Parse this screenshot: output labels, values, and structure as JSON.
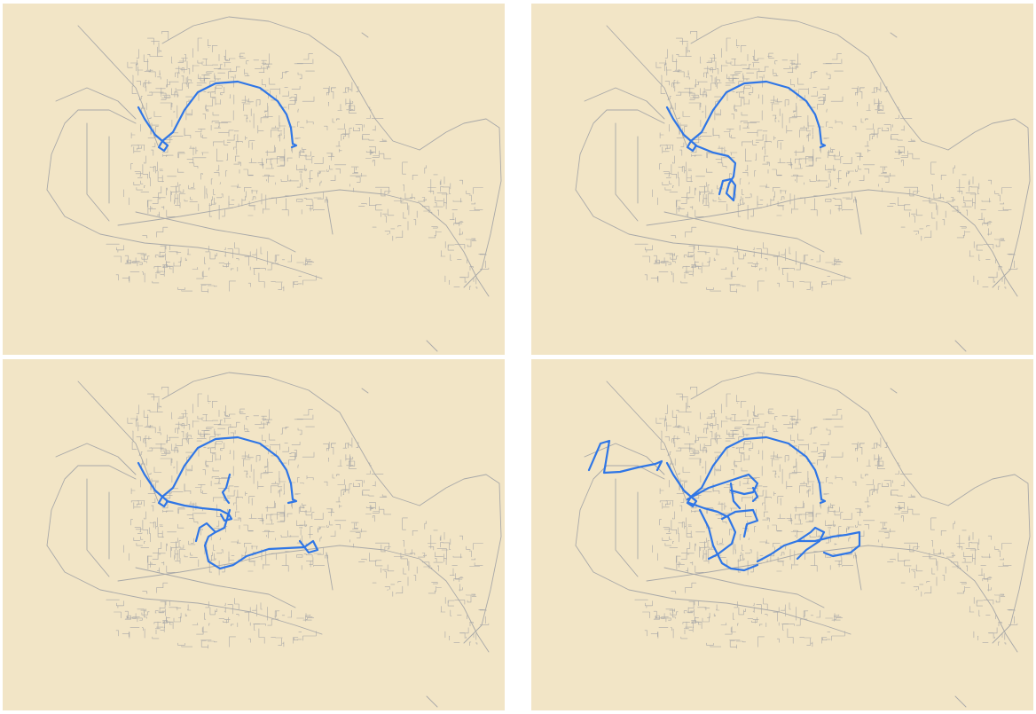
{
  "colors": {
    "land": "#f2e5c6",
    "street": "#a8a8a8",
    "route": "#2f76e6",
    "page": "#ffffff"
  },
  "panels": [
    {
      "route_coverage": "level-1"
    },
    {
      "route_coverage": "level-2"
    },
    {
      "route_coverage": "level-3"
    },
    {
      "route_coverage": "level-4"
    }
  ]
}
